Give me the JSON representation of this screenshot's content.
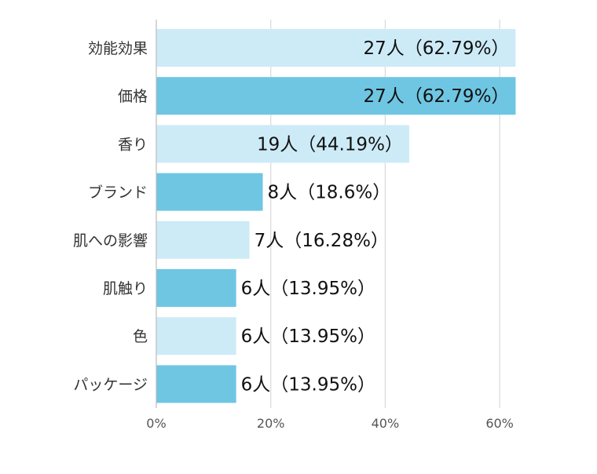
{
  "chart_data": {
    "type": "bar",
    "orientation": "horizontal",
    "categories": [
      "効能効果",
      "価格",
      "香り",
      "ブランド",
      "肌への影響",
      "肌触り",
      "色",
      "パッケージ"
    ],
    "values": [
      62.79,
      62.79,
      44.19,
      18.6,
      16.28,
      13.95,
      13.95,
      13.95
    ],
    "data_labels": [
      "27人（62.79%）",
      "27人（62.79%）",
      "19人（44.19%）",
      "8人（18.6%）",
      "7人（16.28%）",
      "6人（13.95%）",
      "6人（13.95%）",
      "6人（13.95%）"
    ],
    "x_ticks": [
      "0%",
      "20%",
      "40%",
      "60%"
    ],
    "xlim": [
      0,
      60
    ],
    "grid": "vertical",
    "legend": "none",
    "colors": {
      "light": "#cdebf7",
      "dark": "#6ec6e3",
      "grid": "#d9d9d9"
    }
  }
}
